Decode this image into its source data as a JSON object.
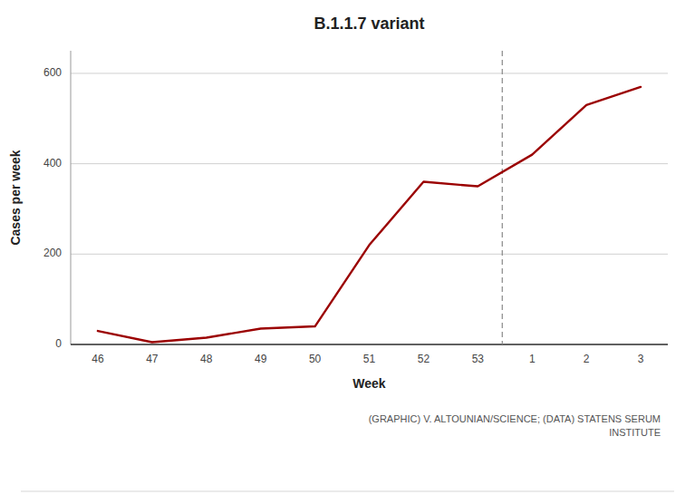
{
  "chart_data": {
    "type": "line",
    "title": "B.1.1.7 variant",
    "x_label": "Week",
    "y_label": "Cases per week",
    "categories": [
      "46",
      "47",
      "48",
      "49",
      "50",
      "51",
      "52",
      "53",
      "1",
      "2",
      "3"
    ],
    "values": [
      30,
      5,
      15,
      35,
      40,
      220,
      360,
      350,
      420,
      530,
      570
    ],
    "color": "#9B0000",
    "ylim": [
      0,
      650
    ],
    "yticks": [
      0,
      200,
      400,
      600
    ],
    "grid": true,
    "reference_line": {
      "x": 7.45,
      "line_style": "dashed",
      "color": "#888888"
    },
    "caption": "(GRAPHIC) V. ALTOUNIAN/SCIENCE; (DATA) STATENS SERUM\nINSTITUTE"
  }
}
